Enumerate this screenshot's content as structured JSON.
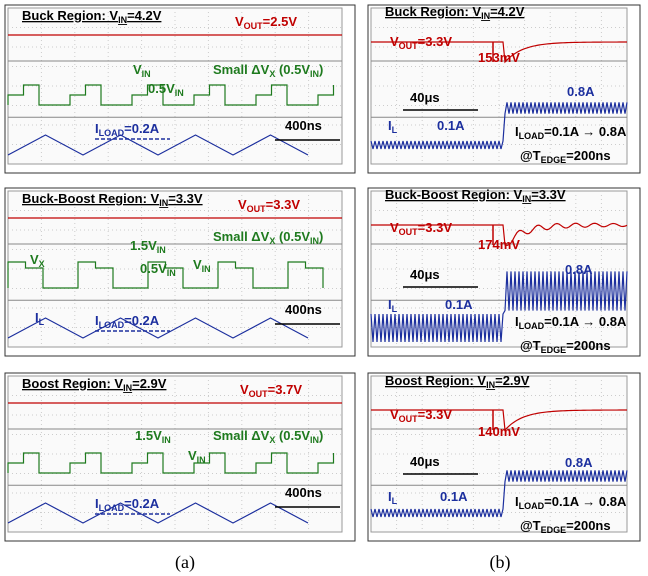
{
  "panels": [
    {
      "title": [
        "Buck Region: V",
        "IN",
        "=4.2V"
      ],
      "labels": [
        {
          "text": [
            "V",
            "OUT",
            "=2.5V"
          ],
          "color": "#c00000"
        },
        {
          "text": [
            "V",
            "IN"
          ],
          "color": "#1e7a1e"
        },
        {
          "text": [
            "0.5V",
            "IN"
          ],
          "color": "#1e7a1e"
        },
        {
          "text": [
            "Small ΔV",
            "X",
            " (0.5V",
            "IN",
            ")"
          ],
          "color": "#1e7a1e"
        },
        {
          "text": [
            "I",
            "LOAD",
            "=0.2A"
          ],
          "color": "#1c2f9e"
        },
        {
          "text": [
            "400ns"
          ],
          "color": "#000000"
        }
      ]
    },
    {
      "title": [
        "Buck-Boost Region: V",
        "IN",
        "=3.3V"
      ],
      "labels": [
        {
          "text": [
            "V",
            "OUT",
            "=3.3V"
          ],
          "color": "#c00000"
        },
        {
          "text": [
            "1.5V",
            "IN"
          ],
          "color": "#1e7a1e"
        },
        {
          "text": [
            "Small ΔV",
            "X",
            " (0.5V",
            "IN",
            ")"
          ],
          "color": "#1e7a1e"
        },
        {
          "text": [
            "V",
            "X"
          ],
          "color": "#1e7a1e"
        },
        {
          "text": [
            "0.5V",
            "IN"
          ],
          "color": "#1e7a1e"
        },
        {
          "text": [
            "V",
            "IN"
          ],
          "color": "#1e7a1e"
        },
        {
          "text": [
            "I",
            "L"
          ],
          "color": "#1c2f9e"
        },
        {
          "text": [
            "I",
            "LOAD",
            "=0.2A"
          ],
          "color": "#1c2f9e"
        },
        {
          "text": [
            "400ns"
          ],
          "color": "#000000"
        }
      ]
    },
    {
      "title": [
        "Boost Region: V",
        "IN",
        "=2.9V"
      ],
      "labels": [
        {
          "text": [
            "V",
            "OUT",
            "=3.7V"
          ],
          "color": "#c00000"
        },
        {
          "text": [
            "1.5V",
            "IN"
          ],
          "color": "#1e7a1e"
        },
        {
          "text": [
            "Small ΔV",
            "X",
            " (0.5V",
            "IN",
            ")"
          ],
          "color": "#1e7a1e"
        },
        {
          "text": [
            "V",
            "IN"
          ],
          "color": "#1e7a1e"
        },
        {
          "text": [
            "I",
            "LOAD",
            "=0.2A"
          ],
          "color": "#1c2f9e"
        },
        {
          "text": [
            "400ns"
          ],
          "color": "#000000"
        }
      ]
    },
    {
      "title": [
        "Buck Region: V",
        "IN",
        "=4.2V"
      ],
      "labels": [
        {
          "text": [
            "V",
            "OUT",
            "=3.3V"
          ],
          "color": "#c00000"
        },
        {
          "text": [
            "153mV"
          ],
          "color": "#c00000"
        },
        {
          "text": [
            "40μs"
          ],
          "color": "#000000"
        },
        {
          "text": [
            "0.8A"
          ],
          "color": "#1c2f9e"
        },
        {
          "text": [
            "I",
            "L"
          ],
          "color": "#1c2f9e"
        },
        {
          "text": [
            "0.1A"
          ],
          "color": "#1c2f9e"
        },
        {
          "text": [
            "I",
            "LOAD",
            "=0.1A → 0.8A"
          ],
          "color": "#000000"
        },
        {
          "text": [
            "@T",
            "EDGE",
            "=200ns"
          ],
          "color": "#000000"
        }
      ]
    },
    {
      "title": [
        "Buck-Boost Region: V",
        "IN",
        "=3.3V"
      ],
      "labels": [
        {
          "text": [
            "V",
            "OUT",
            "=3.3V"
          ],
          "color": "#c00000"
        },
        {
          "text": [
            "174mV"
          ],
          "color": "#c00000"
        },
        {
          "text": [
            "40μs"
          ],
          "color": "#000000"
        },
        {
          "text": [
            "0.8A"
          ],
          "color": "#1c2f9e"
        },
        {
          "text": [
            "I",
            "L"
          ],
          "color": "#1c2f9e"
        },
        {
          "text": [
            "0.1A"
          ],
          "color": "#1c2f9e"
        },
        {
          "text": [
            "I",
            "LOAD",
            "=0.1A → 0.8A"
          ],
          "color": "#000000"
        },
        {
          "text": [
            "@T",
            "EDGE",
            "=200ns"
          ],
          "color": "#000000"
        }
      ]
    },
    {
      "title": [
        "Boost Region: V",
        "IN",
        "=2.9V"
      ],
      "labels": [
        {
          "text": [
            "V",
            "OUT",
            "=3.3V"
          ],
          "color": "#c00000"
        },
        {
          "text": [
            "140mV"
          ],
          "color": "#c00000"
        },
        {
          "text": [
            "40μs"
          ],
          "color": "#000000"
        },
        {
          "text": [
            "0.8A"
          ],
          "color": "#1c2f9e"
        },
        {
          "text": [
            "I",
            "L"
          ],
          "color": "#1c2f9e"
        },
        {
          "text": [
            "0.1A"
          ],
          "color": "#1c2f9e"
        },
        {
          "text": [
            "I",
            "LOAD",
            "=0.1A → 0.8A"
          ],
          "color": "#000000"
        },
        {
          "text": [
            "@T",
            "EDGE",
            "=200ns"
          ],
          "color": "#000000"
        }
      ]
    }
  ],
  "captions": [
    "(a)",
    "(b)"
  ]
}
